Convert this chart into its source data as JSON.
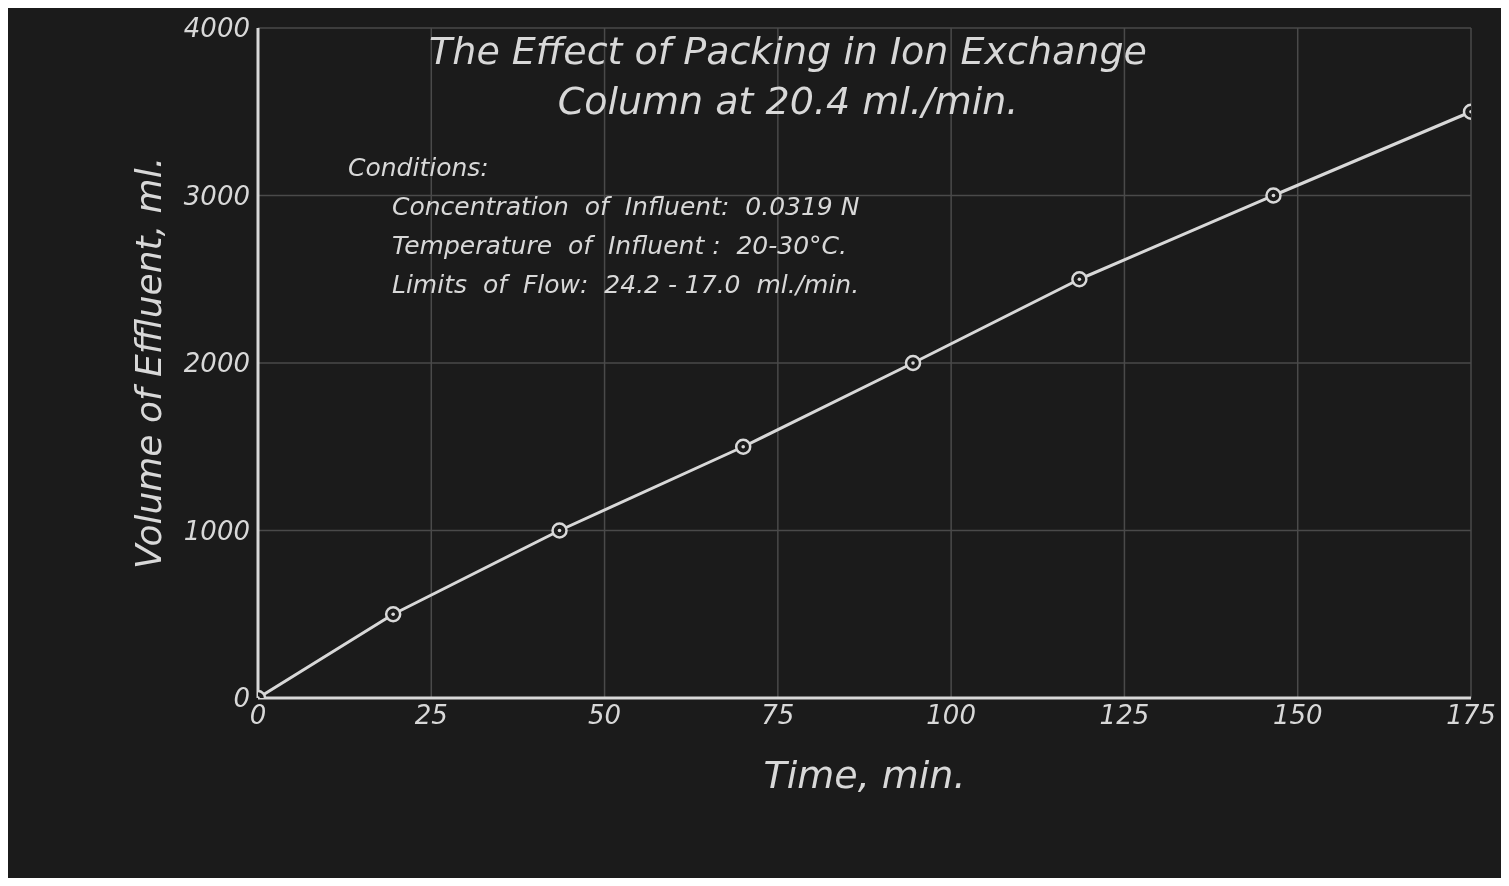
{
  "chart_data": {
    "type": "line",
    "title": "The Effect of Packing in Ion Exchange\nColumn at 20.4 ml./min.",
    "xlabel": "Time,  min.",
    "ylabel": "Volume of Effluent,  ml.",
    "annotations": [
      "Conditions:",
      "Concentration  of  Influent:  0.0319 N",
      "Temperature  of  Influent :  20-30°C.",
      "Limits  of  Flow:  24.2 - 17.0  ml./min."
    ],
    "x": [
      0,
      19.5,
      43.5,
      70,
      94.5,
      118.5,
      146.5,
      175
    ],
    "series": [
      {
        "color": "#d8d8d8",
        "values": [
          0,
          500,
          1000,
          1500,
          2000,
          2500,
          3000,
          3500
        ]
      }
    ],
    "xlim": [
      0,
      175
    ],
    "xticks": [
      0,
      25,
      50,
      75,
      100,
      125,
      150,
      175
    ],
    "ylim": [
      0,
      4000
    ],
    "yticks": [
      0,
      1000,
      2000,
      3000,
      4000
    ],
    "grid": true,
    "marker": "circle",
    "line_style": "solid"
  }
}
